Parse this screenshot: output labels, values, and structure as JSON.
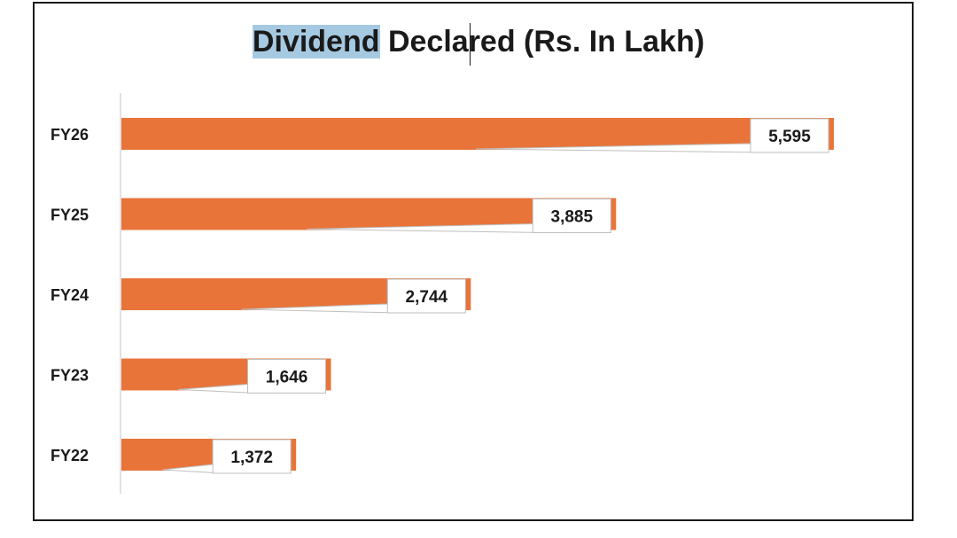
{
  "title": {
    "highlighted": "Dividend",
    "rest_a": " Decla",
    "rest_b": "red (Rs. In Lakh)"
  },
  "chart_data": {
    "type": "bar",
    "orientation": "horizontal",
    "title": "Dividend Declared (Rs. In Lakh)",
    "categories": [
      "FY26",
      "FY25",
      "FY24",
      "FY23",
      "FY22"
    ],
    "values": [
      5595,
      3885,
      2744,
      1646,
      1372
    ],
    "value_labels": [
      "5,595",
      "3,885",
      "2,744",
      "1,646",
      "1,372"
    ],
    "xlim": [
      0,
      5595
    ],
    "grid": false,
    "legend": "none",
    "bar_color": "#e8743a"
  }
}
